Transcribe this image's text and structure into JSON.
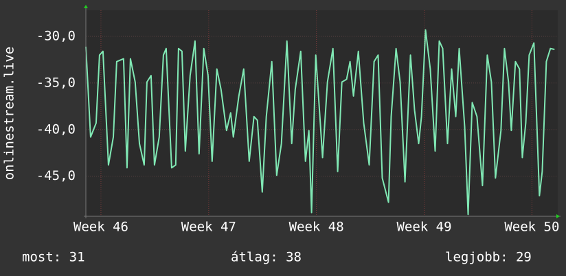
{
  "chart_data": {
    "type": "line",
    "ylabel": "onlinestream.live",
    "x": [
      45.86,
      45.904,
      45.955,
      45.987,
      46.019,
      46.07,
      46.115,
      46.146,
      46.21,
      46.242,
      46.274,
      46.318,
      46.357,
      46.401,
      46.427,
      46.465,
      46.497,
      46.541,
      46.58,
      46.605,
      46.656,
      46.694,
      46.72,
      46.752,
      46.783,
      46.828,
      46.873,
      46.911,
      46.955,
      46.994,
      47.032,
      47.076,
      47.115,
      47.166,
      47.204,
      47.229,
      47.28,
      47.325,
      47.376,
      47.42,
      47.452,
      47.497,
      47.535,
      47.586,
      47.631,
      47.675,
      47.726,
      47.771,
      47.803,
      47.854,
      47.898,
      47.93,
      47.955,
      47.994,
      48.032,
      48.057,
      48.102,
      48.153,
      48.197,
      48.236,
      48.28,
      48.312,
      48.344,
      48.389,
      48.439,
      48.49,
      48.535,
      48.573,
      48.611,
      48.669,
      48.694,
      48.739,
      48.777,
      48.822,
      48.873,
      48.911,
      48.949,
      48.975,
      49.013,
      49.057,
      49.102,
      49.14,
      49.172,
      49.217,
      49.255,
      49.293,
      49.325,
      49.376,
      49.408,
      49.446,
      49.49,
      49.541,
      49.586,
      49.624,
      49.662,
      49.713,
      49.745,
      49.783,
      49.809,
      49.847,
      49.885,
      49.911,
      49.943,
      49.975,
      50.019,
      50.07,
      50.096,
      50.134,
      50.172,
      50.21
    ],
    "series": [
      {
        "color": "#80e8b4",
        "values": [
          -31.1,
          -40.8,
          -39.3,
          -32.0,
          -31.6,
          -43.8,
          -40.8,
          -32.7,
          -32.4,
          -44.1,
          -32.4,
          -34.9,
          -41.5,
          -43.8,
          -34.9,
          -34.2,
          -43.8,
          -40.8,
          -32.0,
          -31.3,
          -44.1,
          -43.8,
          -31.3,
          -31.6,
          -42.3,
          -34.2,
          -30.5,
          -42.6,
          -31.3,
          -34.2,
          -43.4,
          -33.5,
          -35.7,
          -40.1,
          -38.2,
          -40.8,
          -36.4,
          -33.5,
          -43.4,
          -38.6,
          -39.0,
          -46.7,
          -38.6,
          -32.7,
          -44.9,
          -41.5,
          -30.5,
          -41.5,
          -35.7,
          -31.6,
          -43.4,
          -40.1,
          -48.9,
          -32.0,
          -38.6,
          -43.0,
          -34.9,
          -31.3,
          -44.5,
          -34.9,
          -34.6,
          -32.7,
          -36.4,
          -31.6,
          -39.3,
          -43.8,
          -32.7,
          -32.0,
          -45.2,
          -47.8,
          -38.6,
          -31.3,
          -34.9,
          -45.6,
          -32.0,
          -37.9,
          -41.5,
          -38.6,
          -29.3,
          -33.5,
          -42.3,
          -30.5,
          -31.3,
          -41.5,
          -33.5,
          -38.6,
          -31.3,
          -39.7,
          -49.1,
          -37.1,
          -38.6,
          -46.0,
          -32.0,
          -34.9,
          -45.2,
          -40.1,
          -31.3,
          -34.9,
          -40.1,
          -32.7,
          -33.5,
          -43.0,
          -39.3,
          -32.0,
          -30.7,
          -47.1,
          -44.5,
          -32.7,
          -31.3,
          -31.4
        ]
      }
    ],
    "xlim": [
      45.86,
      50.24
    ],
    "xticks": [
      {
        "value": 46,
        "label": "Week 46"
      },
      {
        "value": 47,
        "label": "Week 47"
      },
      {
        "value": 48,
        "label": "Week 48"
      },
      {
        "value": 49,
        "label": "Week 49"
      },
      {
        "value": 50,
        "label": "Week 50"
      }
    ],
    "ylim": [
      -49.3,
      -27.2
    ],
    "yticks": [
      {
        "value": -30,
        "label": "-30,0"
      },
      {
        "value": -35,
        "label": "-35,0"
      },
      {
        "value": -40,
        "label": "-40,0"
      },
      {
        "value": -45,
        "label": "-45,0"
      }
    ],
    "grid": true,
    "footer": {
      "current": "most: 31",
      "average": "átlag: 38",
      "best": "legjobb: 29"
    }
  }
}
